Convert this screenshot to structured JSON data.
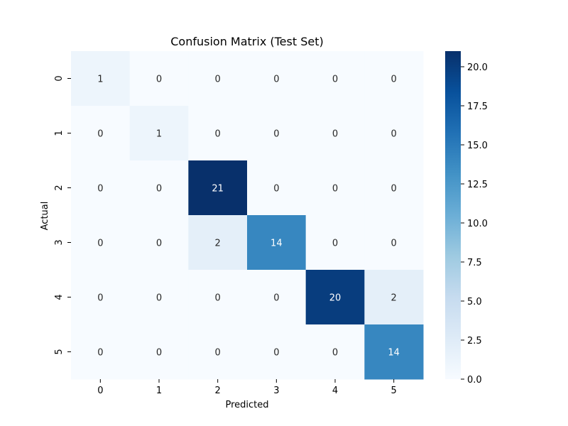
{
  "chart_data": {
    "type": "heatmap",
    "title": "Confusion Matrix (Test Set)",
    "xlabel": "Predicted",
    "ylabel": "Actual",
    "x_categories": [
      "0",
      "1",
      "2",
      "3",
      "4",
      "5"
    ],
    "y_categories": [
      "0",
      "1",
      "2",
      "3",
      "4",
      "5"
    ],
    "values": [
      [
        1,
        0,
        0,
        0,
        0,
        0
      ],
      [
        0,
        1,
        0,
        0,
        0,
        0
      ],
      [
        0,
        0,
        21,
        0,
        0,
        0
      ],
      [
        0,
        0,
        2,
        14,
        0,
        0
      ],
      [
        0,
        0,
        0,
        0,
        20,
        2
      ],
      [
        0,
        0,
        0,
        0,
        0,
        14
      ]
    ],
    "colormap": "Blues",
    "colorbar": {
      "range": [
        0,
        21
      ],
      "ticks": [
        0.0,
        2.5,
        5.0,
        7.5,
        10.0,
        12.5,
        15.0,
        17.5,
        20.0
      ],
      "tick_labels": [
        "0.0",
        "2.5",
        "5.0",
        "7.5",
        "10.0",
        "12.5",
        "15.0",
        "17.5",
        "20.0"
      ]
    },
    "annotations": true,
    "grid": false
  }
}
